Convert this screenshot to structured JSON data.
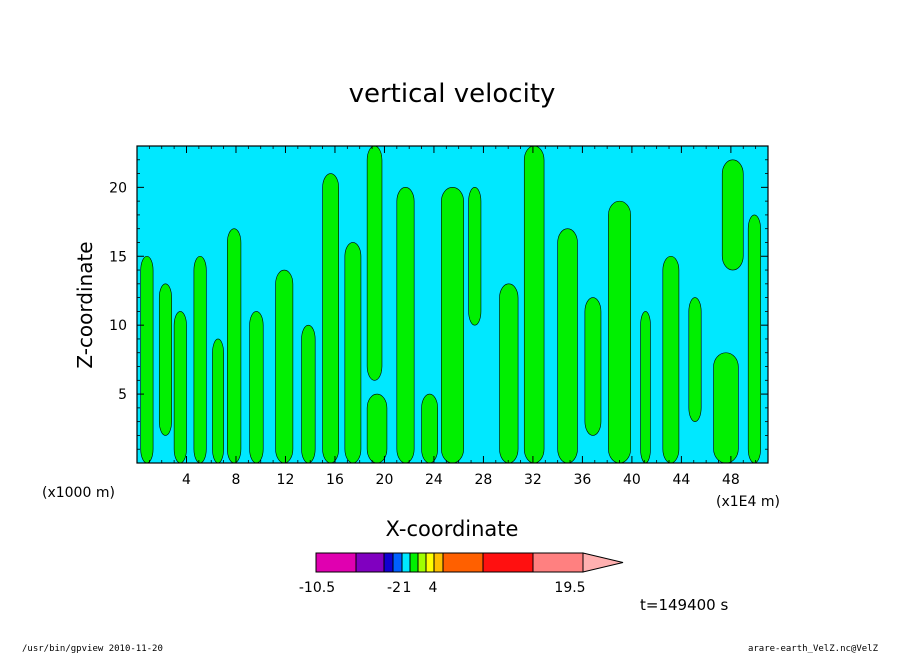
{
  "chart_data": {
    "type": "heatmap",
    "title": "vertical velocity",
    "xlabel": "X-coordinate",
    "ylabel": "Z-coordinate",
    "x_unit_left": "(x1000 m)",
    "x_unit_right": "(x1E4 m)",
    "xlim": [
      0,
      51
    ],
    "ylim": [
      0,
      23
    ],
    "x_ticks": [
      4,
      8,
      12,
      16,
      20,
      24,
      28,
      32,
      36,
      40,
      44,
      48
    ],
    "x_tick_labels": [
      "4",
      "8",
      "12",
      "16",
      "20",
      "24",
      "28",
      "32",
      "36",
      "40",
      "44",
      "48"
    ],
    "y_ticks": [
      5,
      10,
      15,
      20
    ],
    "y_tick_labels": [
      "5",
      "10",
      "15",
      "20"
    ],
    "background_color": "#00e8ff",
    "region_color": "#00f000",
    "regions": [
      {
        "x0": 0.3,
        "x1": 1.3,
        "z0": 0.0,
        "z1": 15.0
      },
      {
        "x0": 1.8,
        "x1": 2.8,
        "z0": 2.0,
        "z1": 13.0
      },
      {
        "x0": 3.0,
        "x1": 4.0,
        "z0": 0.0,
        "z1": 11.0
      },
      {
        "x0": 4.6,
        "x1": 5.6,
        "z0": 0.0,
        "z1": 15.0
      },
      {
        "x0": 6.1,
        "x1": 7.0,
        "z0": 0.0,
        "z1": 9.0
      },
      {
        "x0": 7.3,
        "x1": 8.4,
        "z0": 0.0,
        "z1": 17.0
      },
      {
        "x0": 9.1,
        "x1": 10.2,
        "z0": 0.0,
        "z1": 11.0
      },
      {
        "x0": 11.2,
        "x1": 12.6,
        "z0": 0.0,
        "z1": 14.0
      },
      {
        "x0": 13.3,
        "x1": 14.4,
        "z0": 0.0,
        "z1": 10.0
      },
      {
        "x0": 15.0,
        "x1": 16.3,
        "z0": 0.0,
        "z1": 21.0
      },
      {
        "x0": 16.8,
        "x1": 18.1,
        "z0": 0.0,
        "z1": 16.0
      },
      {
        "x0": 18.6,
        "x1": 19.8,
        "z0": 6.0,
        "z1": 23.0
      },
      {
        "x0": 18.6,
        "x1": 20.2,
        "z0": 0.0,
        "z1": 5.0
      },
      {
        "x0": 21.0,
        "x1": 22.4,
        "z0": 0.0,
        "z1": 20.0
      },
      {
        "x0": 23.0,
        "x1": 24.3,
        "z0": 0.0,
        "z1": 5.0
      },
      {
        "x0": 24.6,
        "x1": 26.4,
        "z0": 0.0,
        "z1": 20.0
      },
      {
        "x0": 26.8,
        "x1": 27.8,
        "z0": 10.0,
        "z1": 20.0
      },
      {
        "x0": 29.3,
        "x1": 30.8,
        "z0": 0.0,
        "z1": 13.0
      },
      {
        "x0": 31.3,
        "x1": 32.9,
        "z0": 0.0,
        "z1": 23.0
      },
      {
        "x0": 34.0,
        "x1": 35.6,
        "z0": 0.0,
        "z1": 17.0
      },
      {
        "x0": 36.2,
        "x1": 37.5,
        "z0": 2.0,
        "z1": 12.0
      },
      {
        "x0": 38.1,
        "x1": 39.9,
        "z0": 0.0,
        "z1": 19.0
      },
      {
        "x0": 40.7,
        "x1": 41.5,
        "z0": 0.0,
        "z1": 11.0
      },
      {
        "x0": 42.5,
        "x1": 43.8,
        "z0": 0.0,
        "z1": 15.0
      },
      {
        "x0": 44.6,
        "x1": 45.6,
        "z0": 3.0,
        "z1": 12.0
      },
      {
        "x0": 46.6,
        "x1": 48.6,
        "z0": 0.0,
        "z1": 8.0
      },
      {
        "x0": 47.3,
        "x1": 49.0,
        "z0": 14.0,
        "z1": 22.0
      },
      {
        "x0": 49.4,
        "x1": 50.4,
        "z0": 0.0,
        "z1": 18.0
      }
    ],
    "colorbar": {
      "colors": [
        "#e000b0",
        "#8000c0",
        "#1000d0",
        "#0060ff",
        "#00e8ff",
        "#00f000",
        "#a0ff00",
        "#ffff00",
        "#ffc000",
        "#ff6000",
        "#ff1010",
        "#ff8080"
      ],
      "labels": [
        "-10.5",
        "-2",
        "1",
        "4",
        "19.5"
      ]
    },
    "time_label": "t=149400 s"
  },
  "footer": {
    "left": "/usr/bin/gpview  2010-11-20",
    "right": "arare-earth_VelZ.nc@VelZ"
  }
}
